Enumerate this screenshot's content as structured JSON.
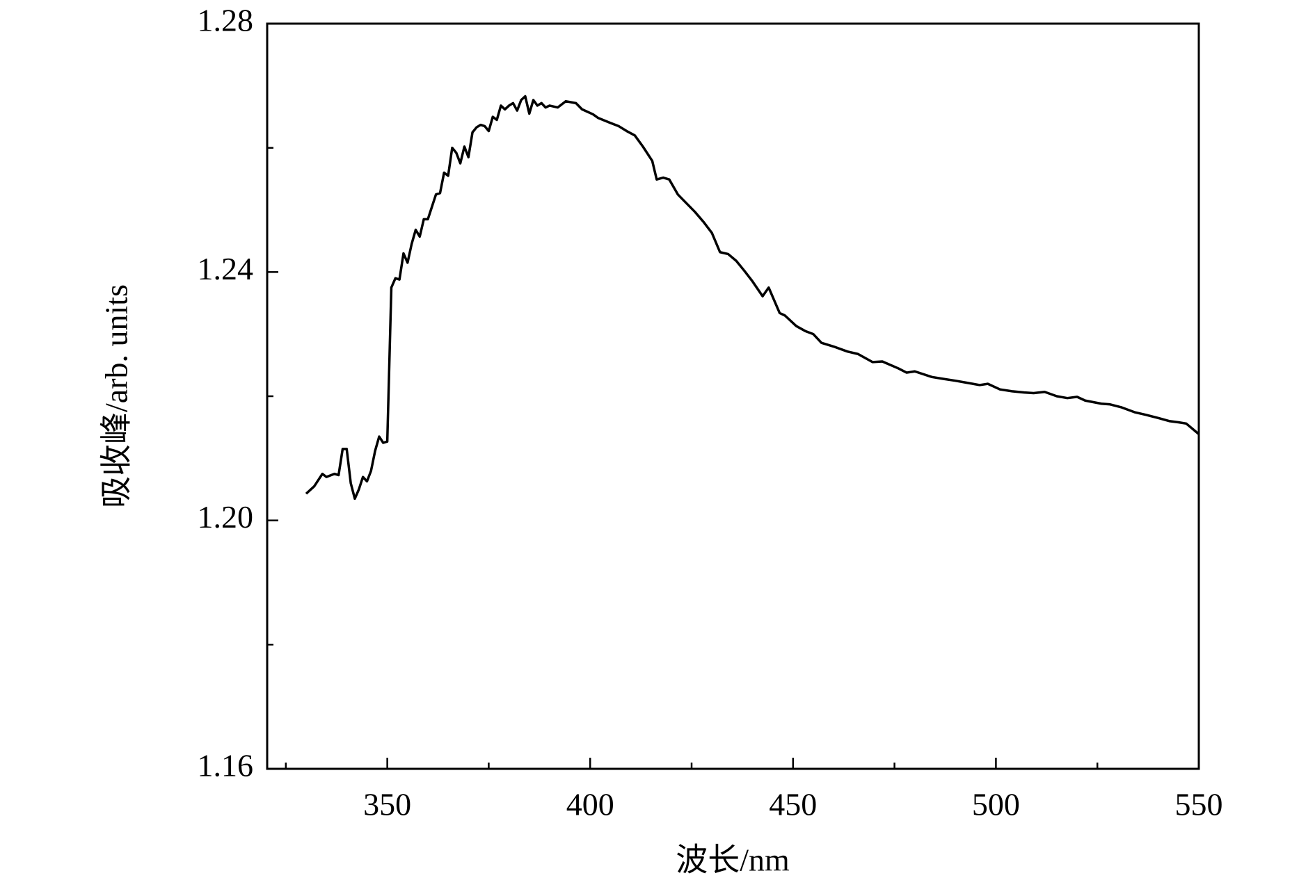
{
  "chart_data": {
    "type": "line",
    "x_label": "波长/nm",
    "y_label": "吸收峰/arb. units",
    "xlim": [
      320.4,
      550
    ],
    "xticks": [
      350,
      400,
      450,
      500,
      550
    ],
    "x_minor_ticks": [
      325,
      375,
      425,
      475,
      525
    ],
    "ylim": [
      1.16,
      1.28
    ],
    "yticks": [
      {
        "value": 1.16,
        "label": "1.16"
      },
      {
        "value": 1.2,
        "label": "1.20"
      },
      {
        "value": 1.24,
        "label": "1.24"
      },
      {
        "value": 1.28,
        "label": "1.28"
      }
    ],
    "y_minor_ticks": [
      1.18,
      1.22,
      1.26
    ],
    "grid": false,
    "series": [
      {
        "color": "#000000",
        "x": [
          330,
          332,
          334,
          335,
          337,
          338,
          339,
          340,
          341,
          342,
          343,
          344,
          345,
          346,
          347,
          348,
          349,
          350,
          351,
          352,
          353,
          354,
          355,
          356,
          357,
          358,
          359,
          360,
          361,
          362,
          363,
          364,
          365,
          366,
          367,
          368,
          369,
          370,
          371,
          372,
          373,
          374,
          375,
          376,
          377,
          378,
          379,
          380,
          381,
          382,
          383,
          384,
          385,
          386,
          387,
          388,
          389,
          390,
          392,
          394,
          396.5,
          398,
          400.7,
          402,
          405,
          407,
          409,
          411,
          413,
          415.3,
          416.4,
          418,
          419.5,
          421.6,
          423.7,
          425.8,
          427.9,
          430,
          432,
          434,
          436,
          438,
          440,
          442.5,
          444,
          446.7,
          448,
          450.8,
          453,
          455,
          457,
          460,
          463.4,
          466,
          469.6,
          472,
          475.9,
          478,
          480,
          484.2,
          487,
          490,
          492.6,
          496,
          498,
          501,
          504,
          507,
          509.3,
          512,
          515,
          517.6,
          520,
          522,
          526,
          528,
          531,
          534.3,
          537,
          540,
          542.7,
          545,
          546.9,
          548,
          550
        ],
        "values": [
          1.2043,
          1.2055,
          1.2075,
          1.207,
          1.2075,
          1.2073,
          1.2115,
          1.2115,
          1.206,
          1.2035,
          1.205,
          1.207,
          1.2063,
          1.208,
          1.2112,
          1.2135,
          1.2125,
          1.2127,
          1.2375,
          1.239,
          1.2388,
          1.243,
          1.2415,
          1.2445,
          1.2468,
          1.2457,
          1.2485,
          1.2485,
          1.2505,
          1.2525,
          1.2527,
          1.256,
          1.2555,
          1.26,
          1.2592,
          1.2575,
          1.2602,
          1.2585,
          1.2625,
          1.2633,
          1.2637,
          1.2635,
          1.2627,
          1.265,
          1.2645,
          1.2668,
          1.2662,
          1.2668,
          1.2672,
          1.266,
          1.2677,
          1.2683,
          1.2655,
          1.2677,
          1.2668,
          1.2672,
          1.2665,
          1.2668,
          1.2665,
          1.2675,
          1.2672,
          1.2662,
          1.2654,
          1.2648,
          1.264,
          1.2635,
          1.2627,
          1.262,
          1.2602,
          1.2579,
          1.2549,
          1.2552,
          1.2549,
          1.2525,
          1.2511,
          1.2497,
          1.2481,
          1.2463,
          1.2432,
          1.2429,
          1.2418,
          1.2402,
          1.2385,
          1.2361,
          1.2375,
          1.2334,
          1.233,
          1.2313,
          1.2305,
          1.23,
          1.2286,
          1.228,
          1.2272,
          1.2268,
          1.2255,
          1.2256,
          1.2245,
          1.2238,
          1.224,
          1.2231,
          1.2228,
          1.2225,
          1.2222,
          1.2218,
          1.222,
          1.2211,
          1.2208,
          1.2206,
          1.2205,
          1.2207,
          1.22,
          1.2197,
          1.2199,
          1.2193,
          1.2188,
          1.2187,
          1.2182,
          1.2174,
          1.217,
          1.2165,
          1.216,
          1.2158,
          1.2156,
          1.215,
          1.2139
        ]
      }
    ]
  }
}
